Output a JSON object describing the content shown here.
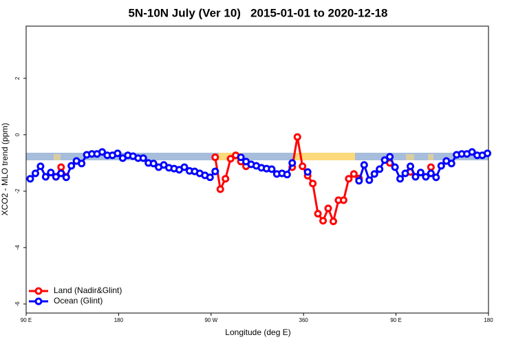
{
  "chart_data": {
    "type": "line",
    "title": "5N-10N July (Ver 10)   2015-01-01 to 2020-12-18",
    "x_label": "Longitude (deg E)",
    "y_label": "XCO2 - MLO trend (ppm)",
    "xlim": [
      90,
      540
    ],
    "ylim": [
      -6.32,
      3.85
    ],
    "xticks": [
      {
        "value": 90,
        "label": "90 E"
      },
      180,
      {
        "value": 270,
        "label": "90 W"
      },
      360,
      {
        "value": 450,
        "label": "90 E"
      },
      {
        "value": 540,
        "label": "180"
      }
    ],
    "yticks": [
      -6,
      -4,
      -2,
      0,
      2
    ],
    "legend": "bottom left",
    "x": [
      94,
      99,
      104,
      109,
      114,
      119,
      124,
      129,
      134,
      139,
      144,
      149,
      154,
      159,
      164,
      169,
      174,
      179,
      184,
      189,
      194,
      199,
      204,
      209,
      214,
      219,
      224,
      229,
      234,
      239,
      244,
      249,
      254,
      259,
      264,
      269,
      274,
      279,
      284,
      289,
      294,
      299,
      304,
      309,
      314,
      319,
      324,
      329,
      334,
      339,
      344,
      349,
      354,
      359,
      364,
      369,
      374,
      379,
      384,
      389,
      394,
      399,
      404,
      409,
      414,
      419,
      424,
      429,
      434,
      439,
      444,
      449,
      454,
      459,
      464,
      469,
      474,
      479,
      484,
      489,
      494,
      499,
      504,
      509,
      514,
      519,
      524,
      529,
      534,
      539
    ],
    "series": [
      {
        "name": "Land (Nadir&Glint)",
        "color": "#ff0000",
        "values": [
          null,
          null,
          null,
          null,
          null,
          -1.49,
          -1.15,
          -1.49,
          null,
          null,
          null,
          null,
          null,
          null,
          null,
          null,
          null,
          null,
          null,
          null,
          null,
          null,
          null,
          null,
          null,
          null,
          null,
          null,
          null,
          null,
          null,
          null,
          null,
          null,
          null,
          null,
          -0.8,
          -1.93,
          -1.56,
          -0.85,
          -0.73,
          -0.95,
          -1.12,
          null,
          null,
          null,
          null,
          null,
          null,
          null,
          null,
          -1.15,
          -0.08,
          -1.12,
          -1.45,
          -1.73,
          -2.8,
          -3.05,
          -2.61,
          -3.07,
          -2.32,
          -2.32,
          -1.56,
          -1.39,
          -1.55,
          null,
          null,
          null,
          null,
          null,
          -1.0,
          null,
          null,
          null,
          -1.32,
          null,
          null,
          null,
          -1.15,
          null,
          null,
          null,
          null,
          null,
          null,
          null,
          null,
          null,
          null,
          null
        ]
      },
      {
        "name": "Ocean (Glint)",
        "color": "#0000ff",
        "values": [
          -1.56,
          -1.37,
          -1.12,
          -1.49,
          -1.34,
          -1.49,
          -1.37,
          -1.51,
          -1.1,
          -0.93,
          -1.02,
          -0.71,
          -0.68,
          -0.68,
          -0.61,
          -0.73,
          -0.73,
          -0.66,
          -0.83,
          -0.73,
          -0.76,
          -0.83,
          -0.83,
          -1.0,
          -1.02,
          -1.15,
          -1.07,
          -1.17,
          -1.2,
          -1.24,
          -1.15,
          -1.28,
          -1.3,
          -1.37,
          -1.44,
          -1.51,
          -1.3,
          null,
          null,
          null,
          null,
          -0.8,
          -0.95,
          -1.05,
          -1.1,
          -1.17,
          -1.2,
          -1.22,
          -1.39,
          -1.37,
          -1.41,
          -1.0,
          null,
          null,
          -1.32,
          null,
          null,
          null,
          null,
          null,
          null,
          null,
          null,
          null,
          -1.63,
          -1.07,
          -1.61,
          -1.39,
          -1.22,
          -0.9,
          -0.78,
          -1.15,
          -1.56,
          -1.37,
          -1.12,
          -1.49,
          -1.34,
          -1.49,
          -1.37,
          -1.51,
          -1.1,
          -0.93,
          -1.02,
          -0.71,
          -0.68,
          -0.68,
          -0.61,
          -0.73,
          -0.73,
          -0.66
        ]
      }
    ]
  }
}
